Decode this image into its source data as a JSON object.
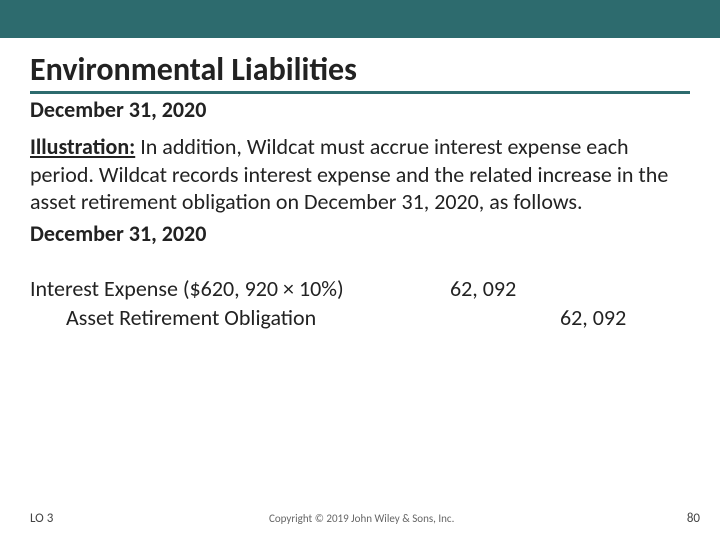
{
  "header": {
    "bar_color": "#2d6b6e"
  },
  "title": "Environmental Liabilities",
  "subtitle": "December 31, 2020",
  "illustration": {
    "label": "Illustration:",
    "text": "In addition, Wildcat must accrue interest expense each period. Wildcat records interest expense and the related increase in the asset retirement obligation on December 31, 2020, as follows."
  },
  "entry_date": "December 31, 2020",
  "journal": {
    "debit_account": "Interest Expense ($620, 920 × 10%)",
    "debit_amount": "62, 092",
    "credit_account": "Asset Retirement Obligation",
    "credit_amount": "62, 092"
  },
  "footer": {
    "lo": "LO 3",
    "copyright": "Copyright © 2019 John Wiley & Sons, Inc.",
    "page": "80"
  }
}
